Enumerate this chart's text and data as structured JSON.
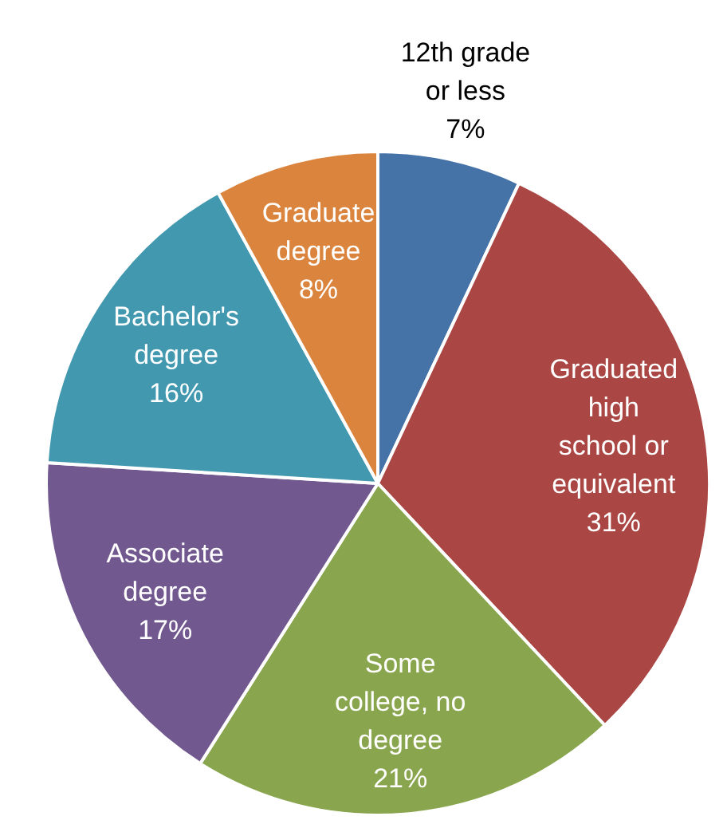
{
  "chart_data": {
    "type": "pie",
    "categories": [
      "12th grade or less",
      "Graduated high school or equivalent",
      "Some college, no degree",
      "Associate degree",
      "Bachelor's degree",
      "Graduate degree"
    ],
    "values": [
      7,
      31,
      21,
      17,
      16,
      8
    ],
    "colors": [
      "#4572a7",
      "#aa4643",
      "#89a54e",
      "#71588f",
      "#4198af",
      "#db843d"
    ],
    "value_labels": [
      "7%",
      "31%",
      "21%",
      "17%",
      "16%",
      "8%"
    ]
  }
}
